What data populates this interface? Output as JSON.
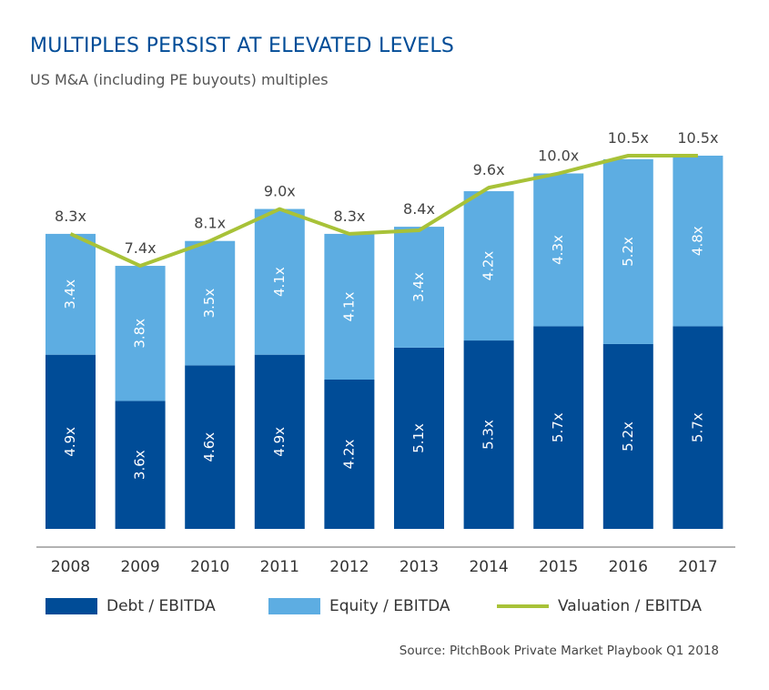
{
  "header": {
    "title": "MULTIPLES PERSIST AT ELEVATED LEVELS",
    "subtitle": "US M&A (including PE buyouts) multiples"
  },
  "legend": {
    "debt": "Debt / EBITDA",
    "equity": "Equity / EBITDA",
    "valuation": "Valuation / EBITDA"
  },
  "source": "Source: PitchBook Private Market Playbook Q1 2018",
  "colors": {
    "debt": "#004C97",
    "equity": "#5DADE2",
    "valuation": "#A8C238",
    "title": "#004C97"
  },
  "chart_data": {
    "type": "bar",
    "stacked": true,
    "categories": [
      "2008",
      "2009",
      "2010",
      "2011",
      "2012",
      "2013",
      "2014",
      "2015",
      "2016",
      "2017"
    ],
    "series": [
      {
        "name": "Debt / EBITDA",
        "values": [
          4.9,
          3.6,
          4.6,
          4.9,
          4.2,
          5.1,
          5.3,
          5.7,
          5.2,
          5.7
        ],
        "labels": [
          "4.9x",
          "3.6x",
          "4.6x",
          "4.9x",
          "4.2x",
          "5.1x",
          "5.3x",
          "5.7x",
          "5.2x",
          "5.7x"
        ]
      },
      {
        "name": "Equity / EBITDA",
        "values": [
          3.4,
          3.8,
          3.5,
          4.1,
          4.1,
          3.4,
          4.2,
          4.3,
          5.2,
          4.8
        ],
        "labels": [
          "3.4x",
          "3.8x",
          "3.5x",
          "4.1x",
          "4.1x",
          "3.4x",
          "4.2x",
          "4.3x",
          "5.2x",
          "4.8x"
        ]
      },
      {
        "name": "Valuation / EBITDA",
        "type": "line",
        "values": [
          8.3,
          7.4,
          8.1,
          9.0,
          8.3,
          8.4,
          9.6,
          10.0,
          10.5,
          10.5
        ],
        "labels": [
          "8.3x",
          "7.4x",
          "8.1x",
          "9.0x",
          "8.3x",
          "8.4x",
          "9.6x",
          "10.0x",
          "10.5x",
          "10.5x"
        ]
      }
    ],
    "ylim": [
      0,
      10.5
    ],
    "grid": false,
    "legend_position": "bottom"
  }
}
